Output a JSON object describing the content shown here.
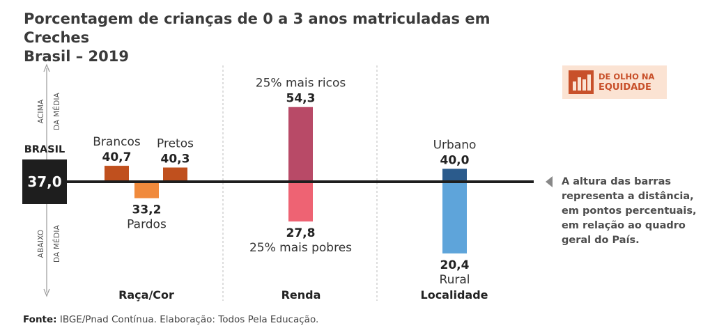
{
  "title_line1": "Porcentagem de crianças de 0 a 3 anos matriculadas em Creches",
  "title_line2": "Brasil – 2019",
  "badge": {
    "line1": "DE OLHO NA",
    "line2": "EQUIDADE",
    "icon": "bar-chart-icon"
  },
  "side_labels": {
    "above": [
      "ACIMA",
      "DA MÉDIA"
    ],
    "below": [
      "ABAIXO",
      "DA MÉDIA"
    ]
  },
  "note": "A altura das barras representa a distância, em pontos percentuais, em relação ao quadro geral do País.",
  "source_label": "Fonte:",
  "source_text": " IBGE/Pnad Contínua. Elaboração: Todos Pela Educação.",
  "colors": {
    "baseline": "#1e1e1e",
    "brancos": "#c0501e",
    "pretos": "#c0501e",
    "pardos": "#f08a3c",
    "ricos": "#b84a67",
    "pobres": "#ee6373",
    "urbano": "#2b5b8c",
    "rural": "#5ea4da",
    "brasil_box": "#1e1e1e"
  },
  "chart_data": {
    "type": "bar",
    "baseline": {
      "label": "BRASIL",
      "value": 37.0,
      "value_label": "37,0"
    },
    "groups": [
      {
        "name": "Raça/Cor",
        "bars": [
          {
            "category": "Brancos",
            "value": 40.7,
            "value_label": "40,7"
          },
          {
            "category": "Pardos",
            "value": 33.2,
            "value_label": "33,2"
          },
          {
            "category": "Pretos",
            "value": 40.3,
            "value_label": "40,3"
          }
        ]
      },
      {
        "name": "Renda",
        "bars": [
          {
            "category": "25% mais ricos",
            "value": 54.3,
            "value_label": "54,3"
          },
          {
            "category": "25% mais pobres",
            "value": 27.8,
            "value_label": "27,8"
          }
        ]
      },
      {
        "name": "Localidade",
        "bars": [
          {
            "category": "Urbano",
            "value": 40.0,
            "value_label": "40,0"
          },
          {
            "category": "Rural",
            "value": 20.4,
            "value_label": "20,4"
          }
        ]
      }
    ]
  }
}
